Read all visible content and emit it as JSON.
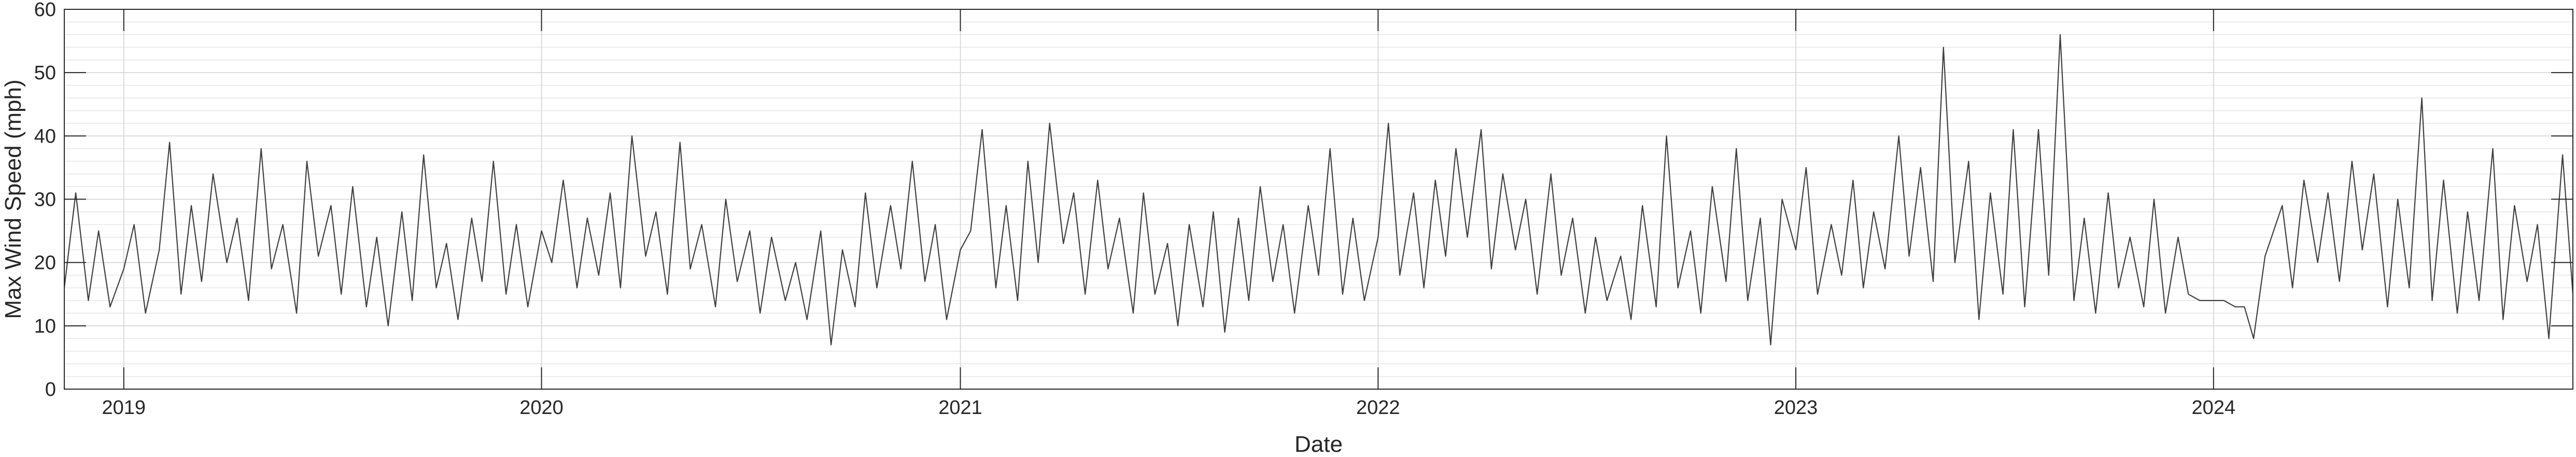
{
  "chart_data": {
    "type": "line",
    "title": "",
    "xlabel": "Date",
    "ylabel": "Max Wind Speed (mph)",
    "x_type": "date",
    "xlim": [
      "2018-11-10",
      "2024-11-10"
    ],
    "ylim": [
      0,
      60
    ],
    "yticks": [
      0,
      10,
      20,
      30,
      40,
      50,
      60
    ],
    "xticks": [
      {
        "date": "2019-01-01",
        "label": "2019"
      },
      {
        "date": "2020-01-01",
        "label": "2020"
      },
      {
        "date": "2021-01-01",
        "label": "2021"
      },
      {
        "date": "2022-01-01",
        "label": "2022"
      },
      {
        "date": "2023-01-01",
        "label": "2023"
      },
      {
        "date": "2024-01-01",
        "label": "2024"
      }
    ],
    "grid": true,
    "minor_grid": true,
    "legend": "none",
    "line_color": "#404040",
    "series": [
      {
        "points": [
          [
            "2018-11-10",
            16
          ],
          [
            "2018-11-20",
            31
          ],
          [
            "2018-12-01",
            14
          ],
          [
            "2018-12-10",
            25
          ],
          [
            "2018-12-20",
            13
          ],
          [
            "2019-01-01",
            19
          ],
          [
            "2019-01-10",
            26
          ],
          [
            "2019-01-20",
            12
          ],
          [
            "2019-02-01",
            22
          ],
          [
            "2019-02-10",
            39
          ],
          [
            "2019-02-20",
            15
          ],
          [
            "2019-03-01",
            29
          ],
          [
            "2019-03-10",
            17
          ],
          [
            "2019-03-20",
            34
          ],
          [
            "2019-04-01",
            20
          ],
          [
            "2019-04-10",
            27
          ],
          [
            "2019-04-20",
            14
          ],
          [
            "2019-05-01",
            38
          ],
          [
            "2019-05-10",
            19
          ],
          [
            "2019-05-20",
            26
          ],
          [
            "2019-06-01",
            12
          ],
          [
            "2019-06-10",
            36
          ],
          [
            "2019-06-20",
            21
          ],
          [
            "2019-07-01",
            29
          ],
          [
            "2019-07-10",
            15
          ],
          [
            "2019-07-20",
            32
          ],
          [
            "2019-08-01",
            13
          ],
          [
            "2019-08-10",
            24
          ],
          [
            "2019-08-20",
            10
          ],
          [
            "2019-09-01",
            28
          ],
          [
            "2019-09-10",
            14
          ],
          [
            "2019-09-20",
            37
          ],
          [
            "2019-10-01",
            16
          ],
          [
            "2019-10-10",
            23
          ],
          [
            "2019-10-20",
            11
          ],
          [
            "2019-11-01",
            27
          ],
          [
            "2019-11-10",
            17
          ],
          [
            "2019-11-20",
            36
          ],
          [
            "2019-12-01",
            15
          ],
          [
            "2019-12-10",
            26
          ],
          [
            "2019-12-20",
            13
          ],
          [
            "2020-01-01",
            25
          ],
          [
            "2020-01-10",
            20
          ],
          [
            "2020-01-20",
            33
          ],
          [
            "2020-02-01",
            16
          ],
          [
            "2020-02-10",
            27
          ],
          [
            "2020-02-20",
            18
          ],
          [
            "2020-03-01",
            31
          ],
          [
            "2020-03-10",
            16
          ],
          [
            "2020-03-20",
            40
          ],
          [
            "2020-04-01",
            21
          ],
          [
            "2020-04-10",
            28
          ],
          [
            "2020-04-20",
            15
          ],
          [
            "2020-05-01",
            39
          ],
          [
            "2020-05-10",
            19
          ],
          [
            "2020-05-20",
            26
          ],
          [
            "2020-06-01",
            13
          ],
          [
            "2020-06-10",
            30
          ],
          [
            "2020-06-20",
            17
          ],
          [
            "2020-07-01",
            25
          ],
          [
            "2020-07-10",
            12
          ],
          [
            "2020-07-20",
            24
          ],
          [
            "2020-08-01",
            14
          ],
          [
            "2020-08-10",
            20
          ],
          [
            "2020-08-20",
            11
          ],
          [
            "2020-09-01",
            25
          ],
          [
            "2020-09-10",
            7
          ],
          [
            "2020-09-20",
            22
          ],
          [
            "2020-10-01",
            13
          ],
          [
            "2020-10-10",
            31
          ],
          [
            "2020-10-20",
            16
          ],
          [
            "2020-11-01",
            29
          ],
          [
            "2020-11-10",
            19
          ],
          [
            "2020-11-20",
            36
          ],
          [
            "2020-12-01",
            17
          ],
          [
            "2020-12-10",
            26
          ],
          [
            "2020-12-20",
            11
          ],
          [
            "2021-01-01",
            22
          ],
          [
            "2021-01-10",
            25
          ],
          [
            "2021-01-20",
            41
          ],
          [
            "2021-02-01",
            16
          ],
          [
            "2021-02-10",
            29
          ],
          [
            "2021-02-20",
            14
          ],
          [
            "2021-03-01",
            36
          ],
          [
            "2021-03-10",
            20
          ],
          [
            "2021-03-20",
            42
          ],
          [
            "2021-04-01",
            23
          ],
          [
            "2021-04-10",
            31
          ],
          [
            "2021-04-20",
            15
          ],
          [
            "2021-05-01",
            33
          ],
          [
            "2021-05-10",
            19
          ],
          [
            "2021-05-20",
            27
          ],
          [
            "2021-06-01",
            12
          ],
          [
            "2021-06-10",
            31
          ],
          [
            "2021-06-20",
            15
          ],
          [
            "2021-07-01",
            23
          ],
          [
            "2021-07-10",
            10
          ],
          [
            "2021-07-20",
            26
          ],
          [
            "2021-08-01",
            13
          ],
          [
            "2021-08-10",
            28
          ],
          [
            "2021-08-20",
            9
          ],
          [
            "2021-09-01",
            27
          ],
          [
            "2021-09-10",
            14
          ],
          [
            "2021-09-20",
            32
          ],
          [
            "2021-10-01",
            17
          ],
          [
            "2021-10-10",
            26
          ],
          [
            "2021-10-20",
            12
          ],
          [
            "2021-11-01",
            29
          ],
          [
            "2021-11-10",
            18
          ],
          [
            "2021-11-20",
            38
          ],
          [
            "2021-12-01",
            15
          ],
          [
            "2021-12-10",
            27
          ],
          [
            "2021-12-20",
            14
          ],
          [
            "2022-01-01",
            24
          ],
          [
            "2022-01-10",
            42
          ],
          [
            "2022-01-20",
            18
          ],
          [
            "2022-02-01",
            31
          ],
          [
            "2022-02-10",
            16
          ],
          [
            "2022-02-20",
            33
          ],
          [
            "2022-03-01",
            21
          ],
          [
            "2022-03-10",
            38
          ],
          [
            "2022-03-20",
            24
          ],
          [
            "2022-04-01",
            41
          ],
          [
            "2022-04-10",
            19
          ],
          [
            "2022-04-20",
            34
          ],
          [
            "2022-05-01",
            22
          ],
          [
            "2022-05-10",
            30
          ],
          [
            "2022-05-20",
            15
          ],
          [
            "2022-06-01",
            34
          ],
          [
            "2022-06-10",
            18
          ],
          [
            "2022-06-20",
            27
          ],
          [
            "2022-07-01",
            12
          ],
          [
            "2022-07-10",
            24
          ],
          [
            "2022-07-20",
            14
          ],
          [
            "2022-08-01",
            21
          ],
          [
            "2022-08-10",
            11
          ],
          [
            "2022-08-20",
            29
          ],
          [
            "2022-09-01",
            13
          ],
          [
            "2022-09-10",
            40
          ],
          [
            "2022-09-20",
            16
          ],
          [
            "2022-10-01",
            25
          ],
          [
            "2022-10-10",
            12
          ],
          [
            "2022-10-20",
            32
          ],
          [
            "2022-11-01",
            17
          ],
          [
            "2022-11-10",
            38
          ],
          [
            "2022-11-20",
            14
          ],
          [
            "2022-12-01",
            27
          ],
          [
            "2022-12-10",
            7
          ],
          [
            "2022-12-20",
            30
          ],
          [
            "2023-01-01",
            22
          ],
          [
            "2023-01-10",
            35
          ],
          [
            "2023-01-20",
            15
          ],
          [
            "2023-02-01",
            26
          ],
          [
            "2023-02-10",
            18
          ],
          [
            "2023-02-20",
            33
          ],
          [
            "2023-03-01",
            16
          ],
          [
            "2023-03-10",
            28
          ],
          [
            "2023-03-20",
            19
          ],
          [
            "2023-04-01",
            40
          ],
          [
            "2023-04-10",
            21
          ],
          [
            "2023-04-20",
            35
          ],
          [
            "2023-05-01",
            17
          ],
          [
            "2023-05-10",
            54
          ],
          [
            "2023-05-20",
            20
          ],
          [
            "2023-06-01",
            36
          ],
          [
            "2023-06-10",
            11
          ],
          [
            "2023-06-20",
            31
          ],
          [
            "2023-07-01",
            15
          ],
          [
            "2023-07-10",
            41
          ],
          [
            "2023-07-20",
            13
          ],
          [
            "2023-08-01",
            41
          ],
          [
            "2023-08-10",
            18
          ],
          [
            "2023-08-20",
            56
          ],
          [
            "2023-09-01",
            14
          ],
          [
            "2023-09-10",
            27
          ],
          [
            "2023-09-20",
            12
          ],
          [
            "2023-10-01",
            31
          ],
          [
            "2023-10-10",
            16
          ],
          [
            "2023-10-20",
            24
          ],
          [
            "2023-11-01",
            13
          ],
          [
            "2023-11-10",
            30
          ],
          [
            "2023-11-20",
            12
          ],
          [
            "2023-12-01",
            24
          ],
          [
            "2023-12-10",
            15
          ],
          [
            "2023-12-20",
            14
          ],
          [
            "2024-01-01",
            14
          ],
          [
            "2024-01-10",
            14
          ],
          [
            "2024-01-20",
            13
          ],
          [
            "2024-01-28",
            13
          ],
          [
            "2024-02-05",
            8
          ],
          [
            "2024-02-15",
            21
          ],
          [
            "2024-03-01",
            29
          ],
          [
            "2024-03-10",
            16
          ],
          [
            "2024-03-20",
            33
          ],
          [
            "2024-04-01",
            20
          ],
          [
            "2024-04-10",
            31
          ],
          [
            "2024-04-20",
            17
          ],
          [
            "2024-05-01",
            36
          ],
          [
            "2024-05-10",
            22
          ],
          [
            "2024-05-20",
            34
          ],
          [
            "2024-06-01",
            13
          ],
          [
            "2024-06-10",
            30
          ],
          [
            "2024-06-20",
            16
          ],
          [
            "2024-07-01",
            46
          ],
          [
            "2024-07-10",
            14
          ],
          [
            "2024-07-20",
            33
          ],
          [
            "2024-08-01",
            12
          ],
          [
            "2024-08-10",
            28
          ],
          [
            "2024-08-20",
            14
          ],
          [
            "2024-09-01",
            38
          ],
          [
            "2024-09-10",
            11
          ],
          [
            "2024-09-20",
            29
          ],
          [
            "2024-10-01",
            17
          ],
          [
            "2024-10-10",
            26
          ],
          [
            "2024-10-20",
            8
          ],
          [
            "2024-11-01",
            37
          ],
          [
            "2024-11-10",
            15
          ]
        ]
      }
    ]
  }
}
